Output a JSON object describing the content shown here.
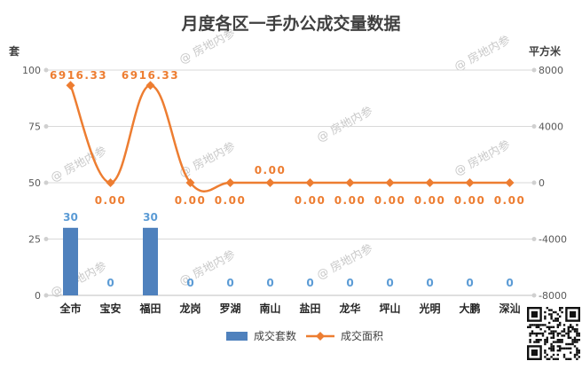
{
  "chart_data": {
    "type": "bar+line",
    "title": "月度各区一手办公成交量数据",
    "y_left_unit": "套",
    "y_right_unit": "平方米",
    "y_left_ticks": [
      "0",
      "25",
      "50",
      "75",
      "100"
    ],
    "y_right_ticks": [
      "-8000",
      "-4000",
      "0",
      "4000",
      "8000"
    ],
    "y_left_range": [
      0,
      100
    ],
    "y_right_range": [
      -8000,
      8000
    ],
    "categories": [
      "全市",
      "宝安",
      "福田",
      "龙岗",
      "罗湖",
      "南山",
      "盐田",
      "龙华",
      "坪山",
      "光明",
      "大鹏",
      "深汕"
    ],
    "series": [
      {
        "name": "成交套数",
        "type": "bar",
        "axis": "left",
        "color": "#4f81bd",
        "values": [
          30,
          0,
          30,
          0,
          0,
          0,
          0,
          0,
          0,
          0,
          0,
          0
        ],
        "labels": [
          "30",
          "0",
          "30",
          "0",
          "0",
          "0",
          "0",
          "0",
          "0",
          "0",
          "0",
          "0"
        ]
      },
      {
        "name": "成交面积",
        "type": "line",
        "axis": "right",
        "color": "#ed7d31",
        "values": [
          6916.33,
          0,
          6916.33,
          0,
          0,
          0,
          0,
          0,
          0,
          0,
          0,
          0
        ],
        "labels": [
          "6916.33",
          "0.00",
          "6916.33",
          "0.00",
          "0.00",
          "0.00",
          "0.00",
          "0.00",
          "0.00",
          "0.00",
          "0.00",
          "0.00"
        ]
      }
    ],
    "legend": {
      "position": "bottom"
    },
    "watermark": "@ 房地内参"
  }
}
